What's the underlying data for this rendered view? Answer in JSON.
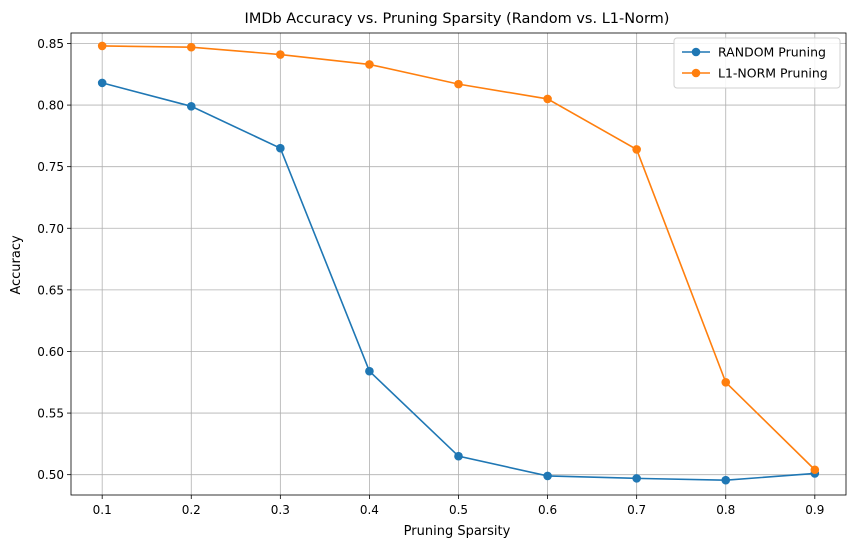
{
  "chart_data": {
    "type": "line",
    "title": "IMDb Accuracy vs. Pruning Sparsity (Random vs. L1-Norm)",
    "xlabel": "Pruning Sparsity",
    "ylabel": "Accuracy",
    "x": [
      0.1,
      0.2,
      0.3,
      0.4,
      0.5,
      0.6,
      0.7,
      0.8,
      0.9
    ],
    "xlim": [
      0.065,
      0.935
    ],
    "ylim": [
      0.4835,
      0.8585
    ],
    "xticks": [
      0.1,
      0.2,
      0.3,
      0.4,
      0.5,
      0.6,
      0.7,
      0.8,
      0.9
    ],
    "xtick_labels": [
      "0.1",
      "0.2",
      "0.3",
      "0.4",
      "0.5",
      "0.6",
      "0.7",
      "0.8",
      "0.9"
    ],
    "yticks": [
      0.5,
      0.55,
      0.6,
      0.65,
      0.7,
      0.75,
      0.8,
      0.85
    ],
    "ytick_labels": [
      "0.50",
      "0.55",
      "0.60",
      "0.65",
      "0.70",
      "0.75",
      "0.80",
      "0.85"
    ],
    "grid": true,
    "legend_position": "top-right",
    "series": [
      {
        "name": "RANDOM Pruning",
        "color": "#1f77b4",
        "marker": "circle",
        "values": [
          0.818,
          0.799,
          0.765,
          0.584,
          0.515,
          0.499,
          0.497,
          0.4955,
          0.501
        ]
      },
      {
        "name": "L1-NORM Pruning",
        "color": "#ff7f0e",
        "marker": "circle",
        "values": [
          0.848,
          0.847,
          0.841,
          0.833,
          0.817,
          0.805,
          0.764,
          0.575,
          0.504
        ]
      }
    ]
  }
}
